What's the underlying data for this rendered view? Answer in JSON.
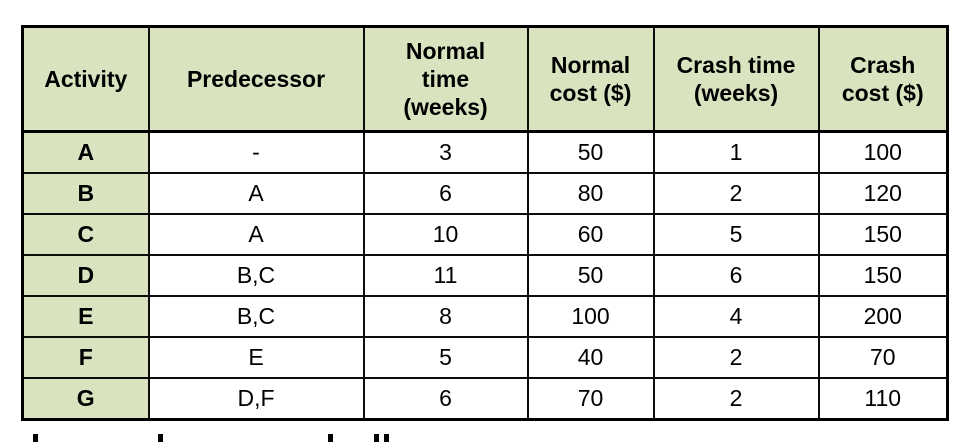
{
  "table": {
    "columns": [
      "Activity",
      "Predecessor",
      "Normal\ntime\n(weeks)",
      "Normal\ncost ($)",
      "Crash time\n(weeks)",
      "Crash\ncost ($)"
    ],
    "rows": [
      [
        "A",
        "-",
        "3",
        "50",
        "1",
        "100"
      ],
      [
        "B",
        "A",
        "6",
        "80",
        "2",
        "120"
      ],
      [
        "C",
        "A",
        "10",
        "60",
        "5",
        "150"
      ],
      [
        "D",
        "B,C",
        "11",
        "50",
        "6",
        "150"
      ],
      [
        "E",
        "B,C",
        "8",
        "100",
        "4",
        "200"
      ],
      [
        "F",
        "E",
        "5",
        "40",
        "2",
        "70"
      ],
      [
        "G",
        "D,F",
        "6",
        "70",
        "2",
        "110"
      ]
    ],
    "colors": {
      "header_bg": "#d9e3c0",
      "activity_col_bg": "#d9e3c0",
      "border": "#000000",
      "text": "#000000"
    }
  }
}
